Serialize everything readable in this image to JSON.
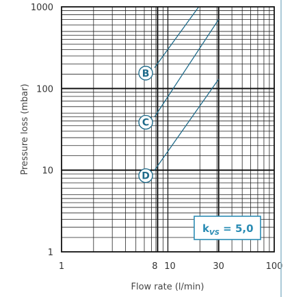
{
  "chart_data": {
    "type": "line",
    "xlabel": "Flow rate (l/min)",
    "ylabel": "Pressure loss (mbar)",
    "x_scale": "log",
    "y_scale": "log",
    "xlim": [
      1,
      100
    ],
    "ylim": [
      1,
      1000
    ],
    "x_ticks": [
      {
        "value": 1,
        "label": "1"
      },
      {
        "value": 8,
        "label": "8"
      },
      {
        "value": 10,
        "label": "10"
      },
      {
        "value": 30,
        "label": "30"
      },
      {
        "value": 100,
        "label": "100"
      }
    ],
    "y_ticks": [
      {
        "value": 1,
        "label": "1"
      },
      {
        "value": 10,
        "label": "10"
      },
      {
        "value": 100,
        "label": "100"
      },
      {
        "value": 1000,
        "label": "1000"
      }
    ],
    "grid": true,
    "heavy_gridlines_x": [
      8,
      30
    ],
    "series": [
      {
        "name": "B",
        "x": [
          7.5,
          19.5
        ],
        "y": [
          180,
          1000
        ]
      },
      {
        "name": "C",
        "x": [
          7.5,
          30
        ],
        "y": [
          45,
          700
        ]
      },
      {
        "name": "D",
        "x": [
          7.5,
          30
        ],
        "y": [
          10,
          130
        ]
      }
    ],
    "annotations": [
      {
        "id": "kvs",
        "text_main": "k",
        "text_sub": "VS",
        "text_tail": " = 5,0",
        "anchor": [
          50,
          2.6
        ]
      }
    ],
    "colors": {
      "series": "#1f6b8a",
      "annotation": "#2a8cb4",
      "grid": "#222222"
    }
  }
}
